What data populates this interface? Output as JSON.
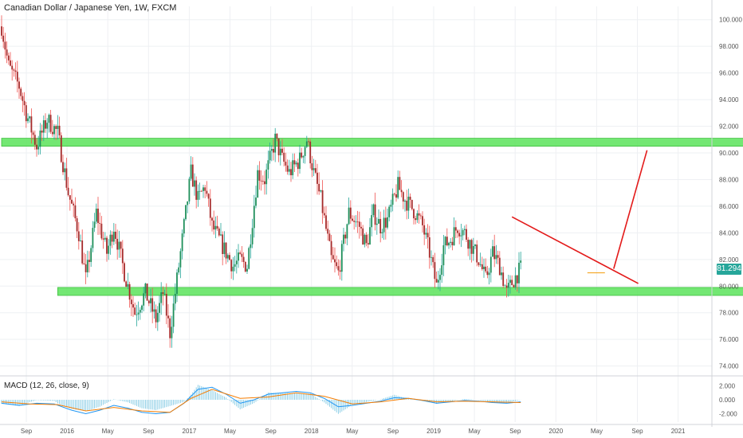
{
  "header": {
    "title": "Canadian Dollar / Japanese Yen, 1W, FXCM",
    "macd_label": "MACD (12, 26, close, 9)",
    "last_price": "81.294"
  },
  "colors": {
    "up": "#26a69a",
    "down": "#ef5350",
    "candle_body_up": "#1e8f5a",
    "candle_body_down": "#a52a2a",
    "zone": "#5be35b",
    "trendline": "#e31a1a",
    "macd_line": "#2196f3",
    "signal_line": "#f57c00",
    "histogram": "#7ec8e3",
    "grid": "#eef0f3"
  },
  "chart_data": {
    "type": "candlestick",
    "x_tick_labels": [
      "Sep",
      "2016",
      "May",
      "Sep",
      "2017",
      "May",
      "Sep",
      "2018",
      "May",
      "Sep",
      "2019",
      "May",
      "Sep",
      "2020",
      "May",
      "Sep",
      "2021"
    ],
    "y_tick_labels": [
      "74.000",
      "76.000",
      "78.000",
      "80.000",
      "82.000",
      "84.000",
      "86.000",
      "88.000",
      "90.000",
      "92.000",
      "94.000",
      "96.000",
      "98.000",
      "100.000"
    ],
    "ylim": [
      73.5,
      101.0
    ],
    "close_path": [
      {
        "t": 0,
        "y": 99.5
      },
      {
        "t": 4,
        "y": 96.5
      },
      {
        "t": 10,
        "y": 95.0
      },
      {
        "t": 14,
        "y": 93.0
      },
      {
        "t": 20,
        "y": 90.5
      },
      {
        "t": 26,
        "y": 92.5
      },
      {
        "t": 32,
        "y": 91.5
      },
      {
        "t": 38,
        "y": 87.0
      },
      {
        "t": 44,
        "y": 84.0
      },
      {
        "t": 48,
        "y": 80.5
      },
      {
        "t": 54,
        "y": 85.5
      },
      {
        "t": 60,
        "y": 82.5
      },
      {
        "t": 64,
        "y": 84.5
      },
      {
        "t": 70,
        "y": 81.0
      },
      {
        "t": 76,
        "y": 78.0
      },
      {
        "t": 82,
        "y": 79.5
      },
      {
        "t": 88,
        "y": 77.5
      },
      {
        "t": 92,
        "y": 79.5
      },
      {
        "t": 96,
        "y": 76.5
      },
      {
        "t": 100,
        "y": 80.5
      },
      {
        "t": 104,
        "y": 84.5
      },
      {
        "t": 108,
        "y": 88.5
      },
      {
        "t": 112,
        "y": 86.5
      },
      {
        "t": 116,
        "y": 87.5
      },
      {
        "t": 120,
        "y": 84.5
      },
      {
        "t": 126,
        "y": 83.0
      },
      {
        "t": 132,
        "y": 81.5
      },
      {
        "t": 136,
        "y": 82.0
      },
      {
        "t": 140,
        "y": 81.5
      },
      {
        "t": 146,
        "y": 88.5
      },
      {
        "t": 150,
        "y": 88.0
      },
      {
        "t": 156,
        "y": 91.0
      },
      {
        "t": 160,
        "y": 89.5
      },
      {
        "t": 164,
        "y": 88.5
      },
      {
        "t": 170,
        "y": 89.5
      },
      {
        "t": 174,
        "y": 91.0
      },
      {
        "t": 178,
        "y": 88.5
      },
      {
        "t": 182,
        "y": 86.5
      },
      {
        "t": 188,
        "y": 82.0
      },
      {
        "t": 192,
        "y": 81.0
      },
      {
        "t": 198,
        "y": 85.5
      },
      {
        "t": 204,
        "y": 84.5
      },
      {
        "t": 208,
        "y": 83.0
      },
      {
        "t": 212,
        "y": 85.5
      },
      {
        "t": 216,
        "y": 84.5
      },
      {
        "t": 220,
        "y": 85.0
      },
      {
        "t": 226,
        "y": 87.5
      },
      {
        "t": 230,
        "y": 86.5
      },
      {
        "t": 236,
        "y": 85.5
      },
      {
        "t": 240,
        "y": 84.5
      },
      {
        "t": 244,
        "y": 82.5
      },
      {
        "t": 248,
        "y": 80.0
      },
      {
        "t": 252,
        "y": 83.0
      },
      {
        "t": 256,
        "y": 83.5
      },
      {
        "t": 260,
        "y": 84.5
      },
      {
        "t": 264,
        "y": 84.0
      },
      {
        "t": 268,
        "y": 83.0
      },
      {
        "t": 272,
        "y": 82.0
      },
      {
        "t": 276,
        "y": 80.5
      },
      {
        "t": 280,
        "y": 82.5
      },
      {
        "t": 284,
        "y": 81.5
      },
      {
        "t": 288,
        "y": 79.5
      },
      {
        "t": 292,
        "y": 80.5
      },
      {
        "t": 296,
        "y": 81.3
      }
    ],
    "zones": [
      {
        "from_t": 0,
        "to_t": 428,
        "low": 90.5,
        "high": 91.1
      },
      {
        "from_t": 32,
        "to_t": 446,
        "low": 79.3,
        "high": 79.9
      }
    ],
    "trendlines": [
      {
        "points": [
          {
            "t": 291,
            "y": 85.2
          },
          {
            "t": 363,
            "y": 80.2
          }
        ]
      },
      {
        "points": [
          {
            "t": 349,
            "y": 81.3
          },
          {
            "t": 368,
            "y": 90.2
          }
        ]
      }
    ],
    "last_price_marker": {
      "t_from": 334,
      "t_to": 344,
      "y": 81.0
    },
    "macd": {
      "y_tick_labels": [
        "2.000",
        "0.000",
        "-2.000"
      ],
      "ylim": [
        -3.2,
        3.2
      ],
      "macd_path": [
        {
          "t": 0,
          "y": -0.5
        },
        {
          "t": 10,
          "y": -0.8
        },
        {
          "t": 20,
          "y": -0.5
        },
        {
          "t": 30,
          "y": -0.6
        },
        {
          "t": 40,
          "y": -1.5
        },
        {
          "t": 48,
          "y": -2.0
        },
        {
          "t": 56,
          "y": -1.5
        },
        {
          "t": 64,
          "y": -0.8
        },
        {
          "t": 72,
          "y": -1.2
        },
        {
          "t": 80,
          "y": -1.8
        },
        {
          "t": 88,
          "y": -2.0
        },
        {
          "t": 96,
          "y": -1.8
        },
        {
          "t": 104,
          "y": -0.5
        },
        {
          "t": 112,
          "y": 1.5
        },
        {
          "t": 120,
          "y": 1.8
        },
        {
          "t": 128,
          "y": 0.8
        },
        {
          "t": 136,
          "y": -0.5
        },
        {
          "t": 144,
          "y": 0.0
        },
        {
          "t": 152,
          "y": 0.8
        },
        {
          "t": 160,
          "y": 1.0
        },
        {
          "t": 168,
          "y": 1.2
        },
        {
          "t": 176,
          "y": 1.0
        },
        {
          "t": 184,
          "y": 0.2
        },
        {
          "t": 192,
          "y": -1.0
        },
        {
          "t": 200,
          "y": -0.8
        },
        {
          "t": 208,
          "y": -0.5
        },
        {
          "t": 216,
          "y": -0.2
        },
        {
          "t": 224,
          "y": 0.3
        },
        {
          "t": 232,
          "y": 0.2
        },
        {
          "t": 240,
          "y": -0.1
        },
        {
          "t": 248,
          "y": -0.5
        },
        {
          "t": 256,
          "y": -0.3
        },
        {
          "t": 264,
          "y": -0.1
        },
        {
          "t": 272,
          "y": -0.2
        },
        {
          "t": 280,
          "y": -0.4
        },
        {
          "t": 288,
          "y": -0.5
        },
        {
          "t": 296,
          "y": -0.3
        }
      ],
      "signal_path": [
        {
          "t": 0,
          "y": -0.3
        },
        {
          "t": 16,
          "y": -0.6
        },
        {
          "t": 32,
          "y": -0.7
        },
        {
          "t": 48,
          "y": -1.6
        },
        {
          "t": 64,
          "y": -1.1
        },
        {
          "t": 80,
          "y": -1.6
        },
        {
          "t": 96,
          "y": -1.8
        },
        {
          "t": 108,
          "y": 0.2
        },
        {
          "t": 120,
          "y": 1.5
        },
        {
          "t": 136,
          "y": 0.2
        },
        {
          "t": 152,
          "y": 0.4
        },
        {
          "t": 168,
          "y": 1.0
        },
        {
          "t": 184,
          "y": 0.5
        },
        {
          "t": 200,
          "y": -0.6
        },
        {
          "t": 216,
          "y": -0.3
        },
        {
          "t": 232,
          "y": 0.2
        },
        {
          "t": 248,
          "y": -0.3
        },
        {
          "t": 264,
          "y": -0.2
        },
        {
          "t": 280,
          "y": -0.3
        },
        {
          "t": 296,
          "y": -0.4
        }
      ]
    }
  }
}
